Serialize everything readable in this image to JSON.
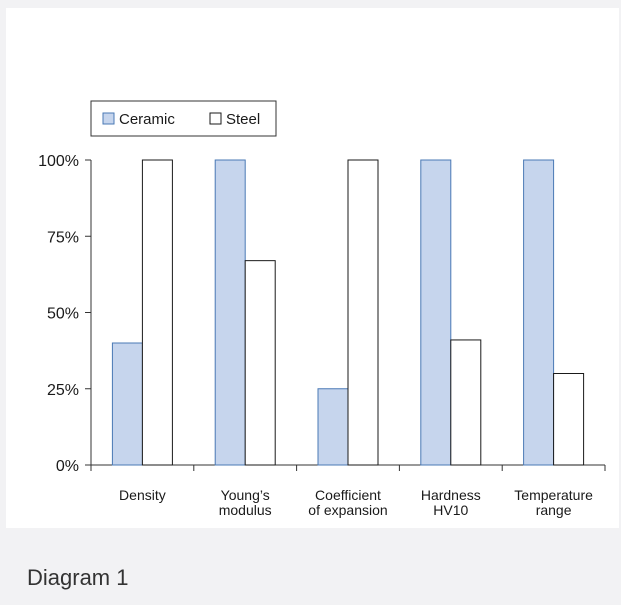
{
  "caption": "Diagram 1",
  "colors": {
    "ceramic_fill": "#c6d5ed",
    "ceramic_stroke": "#4a79b5",
    "steel_fill": "#ffffff",
    "steel_stroke": "#1a1a1a"
  },
  "chart_data": {
    "type": "bar",
    "categories": [
      [
        "Density"
      ],
      [
        "Young’s",
        "modulus"
      ],
      [
        "Coefficient",
        "of expansion"
      ],
      [
        "Hardness",
        "HV10"
      ],
      [
        "Temperature",
        "range"
      ]
    ],
    "series": [
      {
        "name": "Ceramic",
        "values": [
          40,
          100,
          25,
          100,
          100
        ]
      },
      {
        "name": "Steel",
        "values": [
          100,
          67,
          100,
          41,
          30
        ]
      }
    ],
    "yticks": [
      "0%",
      "25%",
      "50%",
      "75%",
      "100%"
    ],
    "ylim": [
      0,
      100
    ],
    "legend_position": "top-left",
    "grid": false
  }
}
